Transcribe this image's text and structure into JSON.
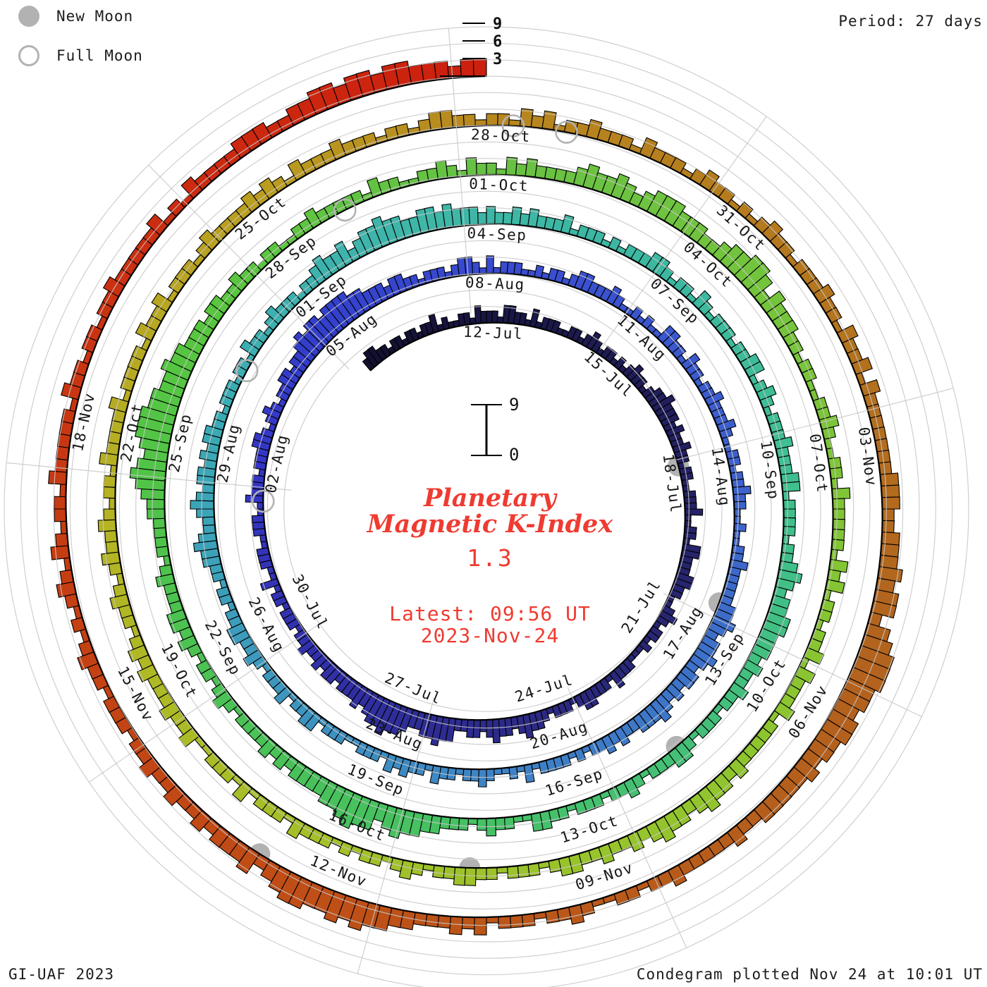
{
  "header": {
    "legend_new_moon": "New Moon",
    "legend_full_moon": "Full Moon",
    "period_label": "Period: 27 days"
  },
  "footer": {
    "left": "GI-UAF 2023",
    "right": "Condegram plotted Nov 24 at 10:01 UT"
  },
  "center": {
    "title_line1": "Planetary",
    "title_line2": "Magnetic K-Index",
    "current_value": "1.3",
    "latest_line1": "Latest: 09:56 UT",
    "latest_line2": "2023-Nov-24",
    "scale_top_label": "9",
    "scale_bottom_label": "0"
  },
  "colors": {
    "accent_red": "#ef3b31",
    "moon_gray": "#b2b2b2",
    "grid_gray": "#c7c7c7",
    "text_black": "#1c1c1c"
  },
  "chart_data": {
    "type": "bar",
    "subtype": "condegram-polar-spiral",
    "title": "Planetary Magnetic K-Index",
    "k_range": [
      0,
      9
    ],
    "radial_tick_labels": [
      "3",
      "6",
      "9"
    ],
    "period_days": 27,
    "interval_hours": 3,
    "start_date": "2023-07-09",
    "end_date": "2023-11-23",
    "top_of_circle_date": "2023-07-12",
    "date_labels": [
      "12-Jul",
      "15-Jul",
      "18-Jul",
      "21-Jul",
      "24-Jul",
      "27-Jul",
      "30-Jul",
      "02-Aug",
      "05-Aug",
      "08-Aug",
      "11-Aug",
      "14-Aug",
      "17-Aug",
      "20-Aug",
      "23-Aug",
      "26-Aug",
      "29-Aug",
      "01-Sep",
      "04-Sep",
      "07-Sep",
      "10-Sep",
      "13-Sep",
      "16-Sep",
      "19-Sep",
      "22-Sep",
      "25-Sep",
      "28-Sep",
      "01-Oct",
      "04-Oct",
      "07-Oct",
      "10-Oct",
      "13-Oct",
      "16-Oct",
      "19-Oct",
      "22-Oct",
      "25-Oct",
      "28-Oct",
      "31-Oct",
      "03-Nov",
      "06-Nov",
      "09-Nov",
      "12-Nov",
      "15-Nov",
      "18-Nov"
    ],
    "k_values_by_day": [
      "23322122",
      "12212231",
      "21122132",
      "22133221",
      "31222112",
      "21232122",
      "12123221",
      "23343332",
      "32232212",
      "21122231",
      "12213322",
      "23322112",
      "32122121",
      "11222312",
      "22332122",
      "21233432",
      "33432332",
      "24454433",
      "45565543",
      "43332332",
      "32232212",
      "22122131",
      "12221122",
      "21132221",
      "22233212",
      "32122332",
      "33454554",
      "55554433",
      "32332212",
      "22123321",
      "31222112",
      "12212332",
      "22321121",
      "21133221",
      "32212232",
      "22321122",
      "12232211",
      "21122322",
      "22233432",
      "33432332",
      "32343332",
      "23232212",
      "12222131",
      "21123221",
      "22312232",
      "31222112",
      "22133221",
      "32221232",
      "23322122",
      "12233432",
      "23432332",
      "32332212",
      "22122132",
      "21232221",
      "22343342",
      "34454433",
      "44343332",
      "32232322",
      "23122212",
      "12223321",
      "22132122",
      "21223312",
      "32122232",
      "22331222",
      "21223432",
      "33443332",
      "32232212",
      "22123322",
      "21232212",
      "22122331",
      "12232122",
      "23344543",
      "55654433",
      "33232322",
      "22123212",
      "21232332",
      "22321222",
      "23345654",
      "56665544",
      "54433323",
      "32232212",
      "21122322",
      "22213221",
      "12232132",
      "21323222",
      "23433432",
      "34443332",
      "23445542",
      "43332212",
      "21122321",
      "12213222",
      "22132312",
      "21223132",
      "22312222",
      "23233432",
      "33432322",
      "32233212",
      "22122332",
      "21232122",
      "12122231",
      "22213122",
      "21132232",
      "22323212",
      "23212322",
      "32122132",
      "22231222",
      "21322312",
      "22123222",
      "23232132",
      "22322212",
      "21233221",
      "22132312",
      "23222132",
      "22123221",
      "21232212",
      "22322132",
      "23132222",
      "22233322",
      "33343442",
      "45666554",
      "55443433",
      "33322322",
      "22232212",
      "21123221",
      "22213232",
      "22334454",
      "54455432",
      "43332322",
      "32232212",
      "22122321",
      "21232132",
      "12213222",
      "22132212",
      "21223222",
      "22312132",
      "22233322",
      "33443443",
      "44333233"
    ],
    "new_moons": [
      {
        "date": "17-Jul",
        "day": 8.8
      },
      {
        "date": "16-Aug",
        "day": 38.4
      },
      {
        "date": "15-Sep",
        "day": 67.6
      },
      {
        "date": "14-Oct",
        "day": 97.7
      },
      {
        "date": "13-Nov",
        "day": 127.0
      }
    ],
    "full_moons": [
      {
        "date": "01-Aug",
        "day": 23.4
      },
      {
        "date": "31-Aug",
        "day": 52.5
      },
      {
        "date": "29-Sep",
        "day": 82.1
      },
      {
        "date": "28-Oct",
        "day": 111.3
      },
      {
        "date": "28-Oct",
        "day": 111.9
      }
    ],
    "colormap": [
      [
        0,
        "#12102e"
      ],
      [
        4,
        "#1a1848"
      ],
      [
        8,
        "#221f5e"
      ],
      [
        12,
        "#282670"
      ],
      [
        16,
        "#2c2a85"
      ],
      [
        20,
        "#3130a8"
      ],
      [
        24,
        "#3436c4"
      ],
      [
        27,
        "#3340cc"
      ],
      [
        31,
        "#3a4ecf"
      ],
      [
        36,
        "#3c60cc"
      ],
      [
        40,
        "#3e74c8"
      ],
      [
        44,
        "#3e86c4"
      ],
      [
        48,
        "#3d9bbc"
      ],
      [
        52,
        "#3aacb4"
      ],
      [
        56,
        "#3fb6a8"
      ],
      [
        60,
        "#3cb8a0"
      ],
      [
        63,
        "#3fbf92"
      ],
      [
        67,
        "#44bf7a"
      ],
      [
        71,
        "#46c163"
      ],
      [
        76,
        "#4cc24f"
      ],
      [
        80,
        "#58c63e"
      ],
      [
        84,
        "#68c145"
      ],
      [
        88,
        "#74c43c"
      ],
      [
        92,
        "#86c532"
      ],
      [
        96,
        "#97c42c"
      ],
      [
        100,
        "#a6bf28"
      ],
      [
        104,
        "#b4b424"
      ],
      [
        108,
        "#ba9f20"
      ],
      [
        111,
        "#b8881f"
      ],
      [
        115,
        "#b4771e"
      ],
      [
        119,
        "#b2641e"
      ],
      [
        123,
        "#b85a1a"
      ],
      [
        127,
        "#c04c16"
      ],
      [
        131,
        "#c63c12"
      ],
      [
        135,
        "#cc2a10"
      ],
      [
        138,
        "#cc200e"
      ]
    ],
    "legend_position": "top-left",
    "grid": true
  }
}
